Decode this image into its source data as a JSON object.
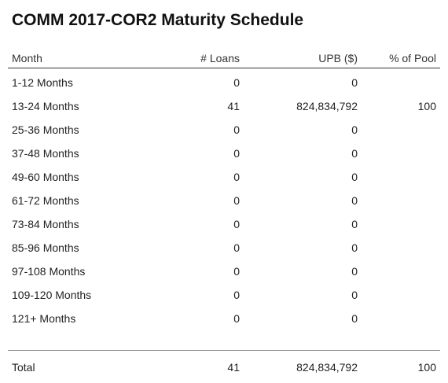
{
  "title": "COMM 2017-COR2 Maturity Schedule",
  "columns": {
    "month": "Month",
    "loans": "# Loans",
    "upb": "UPB ($)",
    "pool": "% of Pool"
  },
  "rows": [
    {
      "month": "1-12 Months",
      "loans": "0",
      "upb": "0",
      "pool": ""
    },
    {
      "month": "13-24 Months",
      "loans": "41",
      "upb": "824,834,792",
      "pool": "100"
    },
    {
      "month": "25-36 Months",
      "loans": "0",
      "upb": "0",
      "pool": ""
    },
    {
      "month": "37-48 Months",
      "loans": "0",
      "upb": "0",
      "pool": ""
    },
    {
      "month": "49-60 Months",
      "loans": "0",
      "upb": "0",
      "pool": ""
    },
    {
      "month": "61-72 Months",
      "loans": "0",
      "upb": "0",
      "pool": ""
    },
    {
      "month": "73-84 Months",
      "loans": "0",
      "upb": "0",
      "pool": ""
    },
    {
      "month": "85-96 Months",
      "loans": "0",
      "upb": "0",
      "pool": ""
    },
    {
      "month": "97-108 Months",
      "loans": "0",
      "upb": "0",
      "pool": ""
    },
    {
      "month": "109-120 Months",
      "loans": "0",
      "upb": "0",
      "pool": ""
    },
    {
      "month": "121+ Months",
      "loans": "0",
      "upb": "0",
      "pool": ""
    }
  ],
  "total": {
    "month": "Total",
    "loans": "41",
    "upb": "824,834,792",
    "pool": "100"
  }
}
